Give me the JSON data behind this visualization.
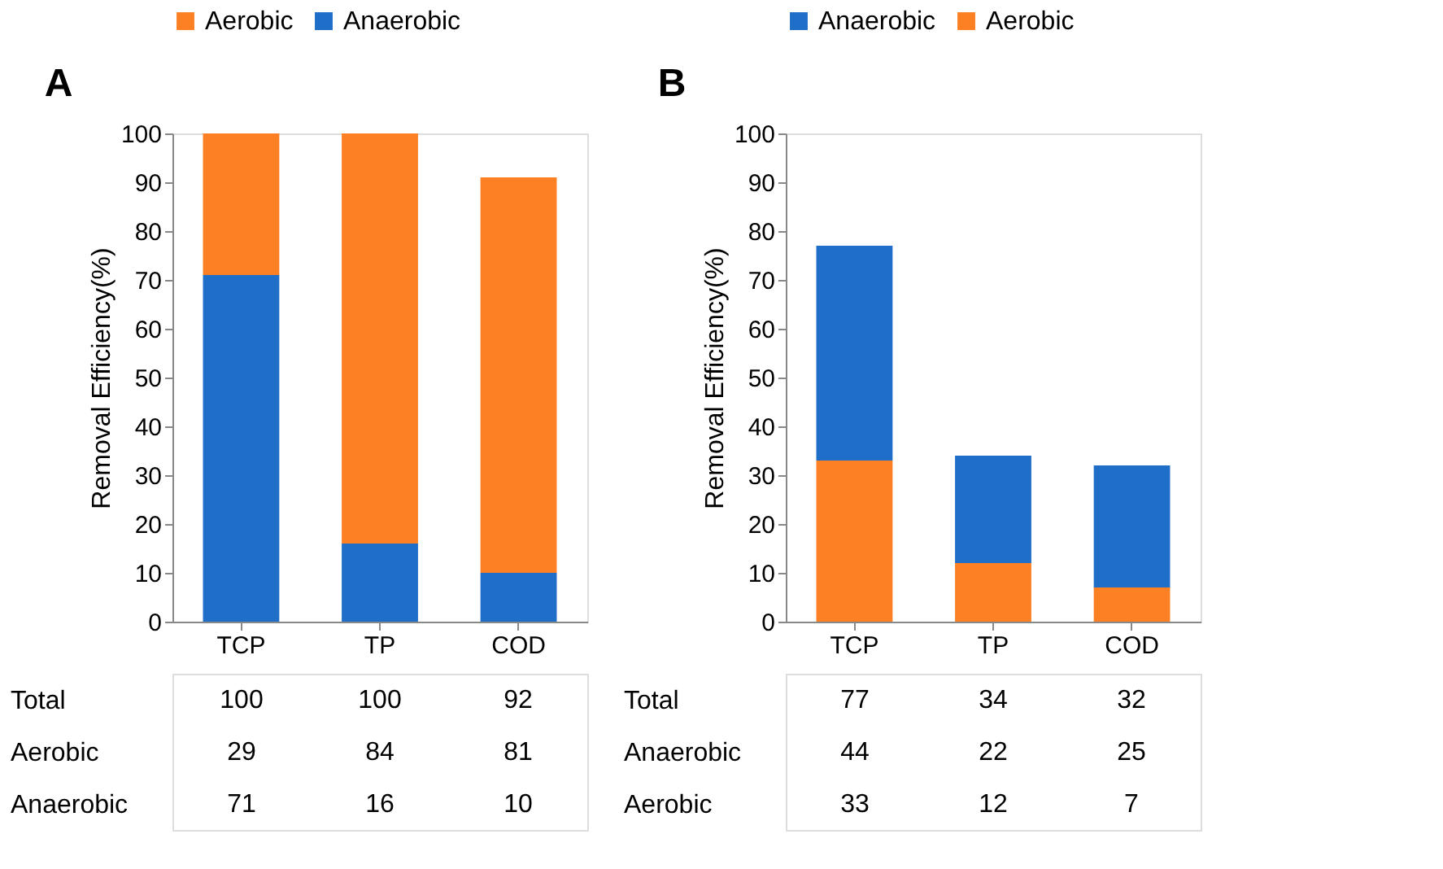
{
  "chart_data": [
    {
      "type": "bar",
      "stacked": true,
      "ylabel": "Removal Efficiency(%)",
      "categories": [
        "TCP",
        "TP",
        "COD"
      ],
      "series": [
        {
          "name": "Anaerobic",
          "color": "#1f6ec8",
          "values": [
            71,
            16,
            10
          ]
        },
        {
          "name": "Aerobic",
          "color": "#fd8024",
          "values": [
            29,
            84,
            81
          ]
        }
      ],
      "ylim": [
        0,
        100
      ],
      "yticks": [
        0,
        10,
        20,
        30,
        40,
        50,
        60,
        70,
        80,
        90,
        100
      ],
      "grid": false,
      "legend": "top",
      "data_labels": true,
      "totals": [
        "100",
        "100",
        "92"
      ],
      "annotations": [
        "A",
        "Total"
      ]
    },
    {
      "type": "bar",
      "stacked": true,
      "ylabel": "Removal Efficiency(%)",
      "categories": [
        "TCP",
        "TP",
        "COD"
      ],
      "series": [
        {
          "name": "Aerobic",
          "color": "#fd8024",
          "values": [
            33,
            12,
            7
          ]
        },
        {
          "name": "Anaerobic",
          "color": "#1f6ec8",
          "values": [
            44,
            22,
            25
          ]
        }
      ],
      "ylim": [
        0,
        100
      ],
      "yticks": [
        0,
        10,
        20,
        30,
        40,
        50,
        60,
        70,
        80,
        90,
        100
      ],
      "grid": false,
      "legend": "top",
      "data_labels": true,
      "totals": [
        "77",
        "34",
        "32"
      ],
      "annotations": [
        "B",
        "Total"
      ]
    }
  ]
}
